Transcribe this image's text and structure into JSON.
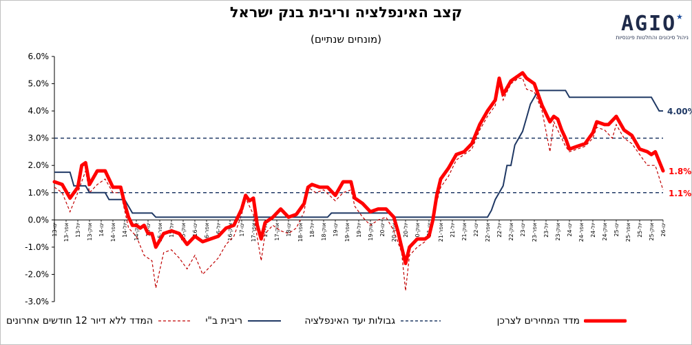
{
  "header": {
    "title": "קצב האינפלציה וריבית בנק ישראל",
    "subtitle": "(מונחים שנתיים)"
  },
  "logo": {
    "mark": "AGIO",
    "tagline": "ניהול סיכונים והחלטות פיננסיות",
    "star_color": "#1f4e9c"
  },
  "colors": {
    "cpi": "#ff0000",
    "cpi_ex_housing": "#c00000",
    "rate": "#1f3864",
    "target": "#1f3864"
  },
  "chart_data": {
    "type": "line",
    "title": "קצב האינפלציה וריבית בנק ישראל",
    "subtitle": "(מונחים שנתיים)",
    "ylim": [
      -3,
      6
    ],
    "yticks": [
      "6.0%",
      "5.0%",
      "4.0%",
      "3.0%",
      "2.0%",
      "1.0%",
      "0.0%",
      "-1.0%",
      "-2.0%",
      "-3.0%"
    ],
    "x_start": "2013-01",
    "x_end": "2026-01",
    "xtick_labels": [
      "ינו-13",
      "אפר-13",
      "יול-13",
      "אוק-13",
      "ינו-14",
      "אפר-14",
      "יול-14",
      "אוק-14",
      "ינו-15",
      "אפר-15",
      "יול-15",
      "אוק-15",
      "ינו-16",
      "אפר-16",
      "יול-16",
      "אוק-16",
      "ינו-17",
      "אפר-17",
      "יול-17",
      "אוק-17",
      "ינו-18",
      "אפר-18",
      "יול-18",
      "אוק-18",
      "ינו-19",
      "אפר-19",
      "יול-19",
      "אוק-19",
      "ינו-20",
      "אפר-20",
      "יול-20",
      "אוק-20",
      "ינו-21",
      "אפר-21",
      "יול-21",
      "אוק-21",
      "ינו-22",
      "אפר-22",
      "יול-22",
      "אוק-22",
      "ינו-23",
      "אפר-23",
      "יול-23",
      "אוק-23",
      "ינו-24",
      "אפר-24",
      "יול-24",
      "אוק-24",
      "ינו-25",
      "אפר-25",
      "יול-25",
      "אוק-25",
      "ינו-26"
    ],
    "target_band": [
      1,
      3
    ],
    "grid": false,
    "legend_position": "bottom",
    "series": [
      {
        "name": "מדד המחירים לצרכן",
        "end_label": "1.8%",
        "points": [
          [
            "2013-01",
            1.4
          ],
          [
            "2013-03",
            1.3
          ],
          [
            "2013-05",
            0.8
          ],
          [
            "2013-07",
            1.2
          ],
          [
            "2013-08",
            2.0
          ],
          [
            "2013-09",
            2.1
          ],
          [
            "2013-10",
            1.3
          ],
          [
            "2013-12",
            1.8
          ],
          [
            "2014-02",
            1.8
          ],
          [
            "2014-04",
            1.2
          ],
          [
            "2014-06",
            1.2
          ],
          [
            "2014-07",
            0.6
          ],
          [
            "2014-08",
            0.1
          ],
          [
            "2014-09",
            -0.2
          ],
          [
            "2014-10",
            -0.2
          ],
          [
            "2014-11",
            -0.3
          ],
          [
            "2014-12",
            -0.2
          ],
          [
            "2015-01",
            -0.5
          ],
          [
            "2015-02",
            -0.5
          ],
          [
            "2015-03",
            -1.0
          ],
          [
            "2015-05",
            -0.5
          ],
          [
            "2015-07",
            -0.4
          ],
          [
            "2015-09",
            -0.5
          ],
          [
            "2015-11",
            -0.9
          ],
          [
            "2016-01",
            -0.6
          ],
          [
            "2016-03",
            -0.8
          ],
          [
            "2016-05",
            -0.7
          ],
          [
            "2016-07",
            -0.6
          ],
          [
            "2016-09",
            -0.3
          ],
          [
            "2016-11",
            -0.2
          ],
          [
            "2017-01",
            0.4
          ],
          [
            "2017-02",
            0.9
          ],
          [
            "2017-03",
            0.7
          ],
          [
            "2017-04",
            0.8
          ],
          [
            "2017-05",
            -0.2
          ],
          [
            "2017-06",
            -0.7
          ],
          [
            "2017-07",
            -0.1
          ],
          [
            "2017-09",
            0.1
          ],
          [
            "2017-11",
            0.4
          ],
          [
            "2018-01",
            0.1
          ],
          [
            "2018-03",
            0.2
          ],
          [
            "2018-05",
            0.6
          ],
          [
            "2018-06",
            1.2
          ],
          [
            "2018-07",
            1.3
          ],
          [
            "2018-09",
            1.2
          ],
          [
            "2018-11",
            1.2
          ],
          [
            "2019-01",
            0.9
          ],
          [
            "2019-03",
            1.4
          ],
          [
            "2019-05",
            1.4
          ],
          [
            "2019-06",
            0.8
          ],
          [
            "2019-08",
            0.6
          ],
          [
            "2019-10",
            0.3
          ],
          [
            "2019-12",
            0.4
          ],
          [
            "2020-02",
            0.4
          ],
          [
            "2020-04",
            0.1
          ],
          [
            "2020-05",
            -0.4
          ],
          [
            "2020-06",
            -1.0
          ],
          [
            "2020-07",
            -1.6
          ],
          [
            "2020-08",
            -1.0
          ],
          [
            "2020-10",
            -0.7
          ],
          [
            "2020-12",
            -0.7
          ],
          [
            "2021-01",
            -0.6
          ],
          [
            "2021-02",
            0.0
          ],
          [
            "2021-03",
            0.9
          ],
          [
            "2021-04",
            1.5
          ],
          [
            "2021-06",
            1.9
          ],
          [
            "2021-08",
            2.4
          ],
          [
            "2021-10",
            2.5
          ],
          [
            "2021-12",
            2.8
          ],
          [
            "2022-02",
            3.5
          ],
          [
            "2022-04",
            4.0
          ],
          [
            "2022-06",
            4.4
          ],
          [
            "2022-07",
            5.2
          ],
          [
            "2022-08",
            4.6
          ],
          [
            "2022-10",
            5.1
          ],
          [
            "2022-12",
            5.3
          ],
          [
            "2023-01",
            5.4
          ],
          [
            "2023-02",
            5.2
          ],
          [
            "2023-04",
            5.0
          ],
          [
            "2023-06",
            4.2
          ],
          [
            "2023-08",
            3.6
          ],
          [
            "2023-09",
            3.8
          ],
          [
            "2023-10",
            3.7
          ],
          [
            "2023-11",
            3.3
          ],
          [
            "2023-12",
            3.0
          ],
          [
            "2024-01",
            2.6
          ],
          [
            "2024-03",
            2.7
          ],
          [
            "2024-05",
            2.8
          ],
          [
            "2024-07",
            3.2
          ],
          [
            "2024-08",
            3.6
          ],
          [
            "2024-10",
            3.5
          ],
          [
            "2024-11",
            3.5
          ],
          [
            "2025-01",
            3.8
          ],
          [
            "2025-03",
            3.3
          ],
          [
            "2025-05",
            3.1
          ],
          [
            "2025-07",
            2.6
          ],
          [
            "2025-09",
            2.5
          ],
          [
            "2025-10",
            2.4
          ],
          [
            "2025-11",
            2.5
          ],
          [
            "2026-01",
            1.8
          ]
        ]
      },
      {
        "name": "גבולות יעד האינפלציה",
        "values": [
          1,
          3
        ]
      },
      {
        "name": "ריבית ב\"י",
        "end_label": "4.00%",
        "points": [
          [
            "2013-01",
            1.75
          ],
          [
            "2013-05",
            1.75
          ],
          [
            "2013-06",
            1.25
          ],
          [
            "2013-09",
            1.25
          ],
          [
            "2013-10",
            1.0
          ],
          [
            "2014-02",
            1.0
          ],
          [
            "2014-03",
            0.75
          ],
          [
            "2014-07",
            0.75
          ],
          [
            "2014-08",
            0.5
          ],
          [
            "2014-09",
            0.25
          ],
          [
            "2015-02",
            0.25
          ],
          [
            "2015-03",
            0.1
          ],
          [
            "2018-11",
            0.1
          ],
          [
            "2018-12",
            0.25
          ],
          [
            "2020-03",
            0.25
          ],
          [
            "2020-04",
            0.1
          ],
          [
            "2022-04",
            0.1
          ],
          [
            "2022-05",
            0.35
          ],
          [
            "2022-06",
            0.75
          ],
          [
            "2022-08",
            1.25
          ],
          [
            "2022-09",
            2.0
          ],
          [
            "2022-10",
            2.0
          ],
          [
            "2022-11",
            2.75
          ],
          [
            "2023-01",
            3.25
          ],
          [
            "2023-02",
            3.75
          ],
          [
            "2023-03",
            4.25
          ],
          [
            "2023-04",
            4.5
          ],
          [
            "2023-05",
            4.75
          ],
          [
            "2023-12",
            4.75
          ],
          [
            "2024-01",
            4.5
          ],
          [
            "2025-10",
            4.5
          ],
          [
            "2025-11",
            4.25
          ],
          [
            "2025-12",
            4.0
          ],
          [
            "2026-01",
            4.0
          ]
        ]
      },
      {
        "name": "המדד ללא דיור 12 חודשים אחרונים",
        "end_label": "1.1%",
        "points": [
          [
            "2013-01",
            1.2
          ],
          [
            "2013-03",
            1.0
          ],
          [
            "2013-05",
            0.3
          ],
          [
            "2013-07",
            1.0
          ],
          [
            "2013-09",
            1.8
          ],
          [
            "2013-10",
            1.0
          ],
          [
            "2013-12",
            1.3
          ],
          [
            "2014-02",
            1.5
          ],
          [
            "2014-04",
            1.0
          ],
          [
            "2014-06",
            1.0
          ],
          [
            "2014-08",
            -0.3
          ],
          [
            "2014-10",
            -0.6
          ],
          [
            "2014-12",
            -1.3
          ],
          [
            "2015-02",
            -1.5
          ],
          [
            "2015-03",
            -2.5
          ],
          [
            "2015-05",
            -1.2
          ],
          [
            "2015-07",
            -1.1
          ],
          [
            "2015-09",
            -1.4
          ],
          [
            "2015-11",
            -1.8
          ],
          [
            "2016-01",
            -1.3
          ],
          [
            "2016-03",
            -2.0
          ],
          [
            "2016-05",
            -1.7
          ],
          [
            "2016-07",
            -1.4
          ],
          [
            "2016-09",
            -0.9
          ],
          [
            "2016-11",
            -0.6
          ],
          [
            "2017-01",
            0.2
          ],
          [
            "2017-02",
            0.8
          ],
          [
            "2017-04",
            0.2
          ],
          [
            "2017-06",
            -1.5
          ],
          [
            "2017-07",
            -0.5
          ],
          [
            "2017-09",
            -0.2
          ],
          [
            "2017-11",
            -0.4
          ],
          [
            "2018-01",
            -0.5
          ],
          [
            "2018-03",
            -0.3
          ],
          [
            "2018-05",
            0.3
          ],
          [
            "2018-06",
            1.2
          ],
          [
            "2018-08",
            1.0
          ],
          [
            "2018-10",
            1.1
          ],
          [
            "2019-01",
            0.7
          ],
          [
            "2019-03",
            1.0
          ],
          [
            "2019-05",
            1.1
          ],
          [
            "2019-06",
            0.5
          ],
          [
            "2019-08",
            0.1
          ],
          [
            "2019-10",
            -0.2
          ],
          [
            "2019-12",
            0.0
          ],
          [
            "2020-02",
            0.1
          ],
          [
            "2020-04",
            -0.4
          ],
          [
            "2020-06",
            -1.2
          ],
          [
            "2020-07",
            -2.6
          ],
          [
            "2020-08",
            -1.3
          ],
          [
            "2020-10",
            -1.0
          ],
          [
            "2020-12",
            -0.8
          ],
          [
            "2021-01",
            -0.5
          ],
          [
            "2021-02",
            0.1
          ],
          [
            "2021-04",
            1.2
          ],
          [
            "2021-06",
            1.6
          ],
          [
            "2021-08",
            2.2
          ],
          [
            "2021-10",
            2.4
          ],
          [
            "2021-12",
            2.6
          ],
          [
            "2022-02",
            3.3
          ],
          [
            "2022-04",
            3.8
          ],
          [
            "2022-06",
            4.2
          ],
          [
            "2022-07",
            5.0
          ],
          [
            "2022-08",
            4.4
          ],
          [
            "2022-10",
            5.0
          ],
          [
            "2022-12",
            5.2
          ],
          [
            "2023-01",
            5.2
          ],
          [
            "2023-02",
            4.8
          ],
          [
            "2023-04",
            4.7
          ],
          [
            "2023-06",
            4.0
          ],
          [
            "2023-08",
            2.5
          ],
          [
            "2023-09",
            3.6
          ],
          [
            "2023-11",
            3.0
          ],
          [
            "2023-12",
            2.7
          ],
          [
            "2024-01",
            2.5
          ],
          [
            "2024-03",
            2.6
          ],
          [
            "2024-05",
            2.7
          ],
          [
            "2024-07",
            3.0
          ],
          [
            "2024-08",
            3.4
          ],
          [
            "2024-10",
            3.3
          ],
          [
            "2024-12",
            3.0
          ],
          [
            "2025-01",
            3.5
          ],
          [
            "2025-03",
            3.0
          ],
          [
            "2025-05",
            2.8
          ],
          [
            "2025-07",
            2.4
          ],
          [
            "2025-09",
            2.0
          ],
          [
            "2025-11",
            2.0
          ],
          [
            "2026-01",
            1.1
          ]
        ]
      }
    ]
  }
}
